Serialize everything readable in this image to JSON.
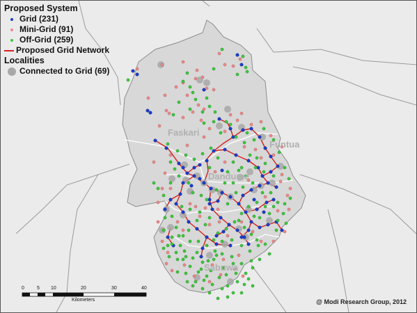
{
  "legend": {
    "system_title": "Proposed System",
    "grid_label": "Grid (231)",
    "minigrid_label": "Mini-Grid (91)",
    "offgrid_label": "Off-Grid (259)",
    "network_label": "Proposed Grid Network",
    "localities_title": "Localities",
    "connected_label": "Connected to Grid (69)"
  },
  "places": {
    "faskari": "Faskari",
    "funtua": "Funtua",
    "dandume": "Dandume",
    "sabuwa": "Sabuwa"
  },
  "scale": {
    "ticks": [
      "0",
      "5",
      "10",
      "20",
      "30",
      "40"
    ],
    "unit": "Kilometers"
  },
  "credit": "@ Modi Research Group, 2012",
  "colors": {
    "grid": "#1a3ccc",
    "minigrid": "#e88a8a",
    "offgrid": "#3cc83c",
    "network": "#d42020",
    "connected": "#a8a8a8",
    "region_fill": "#d8d8d8",
    "background": "#ebebeb"
  }
}
